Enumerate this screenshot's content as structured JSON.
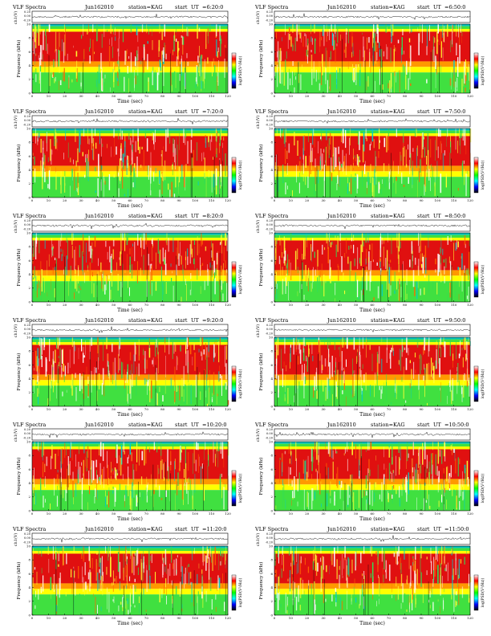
{
  "header_left": "VLF Spectra",
  "station": "station=KAG",
  "chart_data": [
    {
      "type": "heatmap",
      "title": "VLF Spectra",
      "date": "Jun162010",
      "station": "station=KAG",
      "start_label": "start",
      "ut_label": "UT",
      "start_time": "=6:20:0",
      "xlabel": "Time (sec)",
      "ylabel": "Frequency (kHz)",
      "top_ylabel": "ch1(V)",
      "top_yticks": [
        "0.20",
        "0.00",
        "-0.20"
      ],
      "colorbar_label": "log(PSD(V²/Hz))",
      "xlim": [
        0,
        120
      ],
      "ylim": [
        0,
        10
      ],
      "xticks": [
        0,
        10,
        20,
        30,
        40,
        50,
        60,
        70,
        80,
        90,
        100,
        110,
        120
      ],
      "yticks": [
        0,
        2,
        4,
        6,
        8,
        10
      ]
    },
    {
      "type": "heatmap",
      "title": "VLF Spectra",
      "date": "Jun162010",
      "station": "station=KAG",
      "start_label": "start",
      "ut_label": "UT",
      "start_time": "=6:50:0",
      "xlabel": "Time (sec)",
      "ylabel": "Frequency (kHz)",
      "top_ylabel": "ch1(V)",
      "top_yticks": [
        "0.20",
        "0.00",
        "-0.20"
      ],
      "colorbar_label": "log(PSD(V²/Hz))",
      "xlim": [
        0,
        120
      ],
      "ylim": [
        0,
        10
      ],
      "xticks": [
        0,
        10,
        20,
        30,
        40,
        50,
        60,
        70,
        80,
        90,
        100,
        110,
        120
      ],
      "yticks": [
        0,
        2,
        4,
        6,
        8,
        10
      ]
    },
    {
      "type": "heatmap",
      "title": "VLF Spectra",
      "date": "Jun162010",
      "station": "station=KAG",
      "start_label": "start",
      "ut_label": "UT",
      "start_time": "=7:20:0",
      "xlabel": "Time (sec)",
      "ylabel": "Frequency (kHz)",
      "top_ylabel": "ch1(V)",
      "top_yticks": [
        "0.20",
        "0.00",
        "-0.20"
      ],
      "colorbar_label": "log(PSD(V²/Hz))",
      "xlim": [
        0,
        120
      ],
      "ylim": [
        0,
        10
      ],
      "xticks": [
        0,
        10,
        20,
        30,
        40,
        50,
        60,
        70,
        80,
        90,
        100,
        110,
        120
      ],
      "yticks": [
        0,
        2,
        4,
        6,
        8,
        10
      ]
    },
    {
      "type": "heatmap",
      "title": "VLF Spectra",
      "date": "Jun162010",
      "station": "station=KAG",
      "start_label": "start",
      "ut_label": "UT",
      "start_time": "=7:50:0",
      "xlabel": "Time (sec)",
      "ylabel": "Frequency (kHz)",
      "top_ylabel": "ch1(V)",
      "top_yticks": [
        "0.20",
        "0.00",
        "-0.20"
      ],
      "colorbar_label": "log(PSD(V²/Hz))",
      "xlim": [
        0,
        120
      ],
      "ylim": [
        0,
        10
      ],
      "xticks": [
        0,
        10,
        20,
        30,
        40,
        50,
        60,
        70,
        80,
        90,
        100,
        110,
        120
      ],
      "yticks": [
        0,
        2,
        4,
        6,
        8,
        10
      ]
    },
    {
      "type": "heatmap",
      "title": "VLF Spectra",
      "date": "Jun162010",
      "station": "station=KAG",
      "start_label": "start",
      "ut_label": "UT",
      "start_time": "=8:20:0",
      "xlabel": "Time (sec)",
      "ylabel": "Frequency (kHz)",
      "top_ylabel": "ch1(V)",
      "top_yticks": [
        "0.20",
        "0.00",
        "-0.20"
      ],
      "colorbar_label": "log(PSD(V²/Hz))",
      "xlim": [
        0,
        120
      ],
      "ylim": [
        0,
        10
      ],
      "xticks": [
        0,
        10,
        20,
        30,
        40,
        50,
        60,
        70,
        80,
        90,
        100,
        110,
        120
      ],
      "yticks": [
        0,
        2,
        4,
        6,
        8,
        10
      ]
    },
    {
      "type": "heatmap",
      "title": "VLF Spectra",
      "date": "Jun162010",
      "station": "station=KAG",
      "start_label": "start",
      "ut_label": "UT",
      "start_time": "=8:50:0",
      "xlabel": "Time (sec)",
      "ylabel": "Frequency (kHz)",
      "top_ylabel": "ch1(V)",
      "top_yticks": [
        "0.20",
        "0.00",
        "-0.20"
      ],
      "colorbar_label": "log(PSD(V²/Hz))",
      "xlim": [
        0,
        120
      ],
      "ylim": [
        0,
        10
      ],
      "xticks": [
        0,
        10,
        20,
        30,
        40,
        50,
        60,
        70,
        80,
        90,
        100,
        110,
        120
      ],
      "yticks": [
        0,
        2,
        4,
        6,
        8,
        10
      ]
    },
    {
      "type": "heatmap",
      "title": "VLF Spectra",
      "date": "Jun162010",
      "station": "station=KAG",
      "start_label": "start",
      "ut_label": "UT",
      "start_time": "=9:20:0",
      "xlabel": "Time (sec)",
      "ylabel": "Frequency (kHz)",
      "top_ylabel": "ch1(V)",
      "top_yticks": [
        "0.20",
        "0.00",
        "-0.20"
      ],
      "colorbar_label": "log(PSD(V²/Hz))",
      "xlim": [
        0,
        120
      ],
      "ylim": [
        0,
        10
      ],
      "xticks": [
        0,
        10,
        20,
        30,
        40,
        50,
        60,
        70,
        80,
        90,
        100,
        110,
        120
      ],
      "yticks": [
        0,
        2,
        4,
        6,
        8,
        10
      ]
    },
    {
      "type": "heatmap",
      "title": "VLF Spectra",
      "date": "Jun162010",
      "station": "station=KAG",
      "start_label": "start",
      "ut_label": "UT",
      "start_time": "=9:50:0",
      "xlabel": "Time (sec)",
      "ylabel": "Frequency (kHz)",
      "top_ylabel": "ch1(V)",
      "top_yticks": [
        "0.20",
        "0.00",
        "-0.20"
      ],
      "colorbar_label": "log(PSD(V²/Hz))",
      "xlim": [
        0,
        120
      ],
      "ylim": [
        0,
        10
      ],
      "xticks": [
        0,
        10,
        20,
        30,
        40,
        50,
        60,
        70,
        80,
        90,
        100,
        110,
        120
      ],
      "yticks": [
        0,
        2,
        4,
        6,
        8,
        10
      ]
    },
    {
      "type": "heatmap",
      "title": "VLF Spectra",
      "date": "Jun162010",
      "station": "station=KAG",
      "start_label": "start",
      "ut_label": "UT",
      "start_time": "=10:20:0",
      "xlabel": "Time (sec)",
      "ylabel": "Frequency (kHz)",
      "top_ylabel": "ch1(V)",
      "top_yticks": [
        "0.20",
        "0.00",
        "-0.20"
      ],
      "colorbar_label": "log(PSD(V²/Hz))",
      "xlim": [
        0,
        120
      ],
      "ylim": [
        0,
        10
      ],
      "xticks": [
        0,
        10,
        20,
        30,
        40,
        50,
        60,
        70,
        80,
        90,
        100,
        110,
        120
      ],
      "yticks": [
        0,
        2,
        4,
        6,
        8,
        10
      ]
    },
    {
      "type": "heatmap",
      "title": "VLF Spectra",
      "date": "Jun162010",
      "station": "station=KAG",
      "start_label": "start",
      "ut_label": "UT",
      "start_time": "=10:50:0",
      "xlabel": "Time (sec)",
      "ylabel": "Frequency (kHz)",
      "top_ylabel": "ch1(V)",
      "top_yticks": [
        "0.20",
        "0.00",
        "-0.20"
      ],
      "colorbar_label": "log(PSD(V²/Hz))",
      "xlim": [
        0,
        120
      ],
      "ylim": [
        0,
        10
      ],
      "xticks": [
        0,
        10,
        20,
        30,
        40,
        50,
        60,
        70,
        80,
        90,
        100,
        110,
        120
      ],
      "yticks": [
        0,
        2,
        4,
        6,
        8,
        10
      ]
    },
    {
      "type": "heatmap",
      "title": "VLF Spectra",
      "date": "Jun162010",
      "station": "station=KAG",
      "start_label": "start",
      "ut_label": "UT",
      "start_time": "=11:20:0",
      "xlabel": "Time (sec)",
      "ylabel": "Frequency (kHz)",
      "top_ylabel": "ch1(V)",
      "top_yticks": [
        "0.20",
        "0.00",
        "-0.20"
      ],
      "colorbar_label": "log(PSD(V²/Hz))",
      "xlim": [
        0,
        120
      ],
      "ylim": [
        0,
        10
      ],
      "xticks": [
        0,
        10,
        20,
        30,
        40,
        50,
        60,
        70,
        80,
        90,
        100,
        110,
        120
      ],
      "yticks": [
        0,
        2,
        4,
        6,
        8,
        10
      ]
    },
    {
      "type": "heatmap",
      "title": "VLF Spectra",
      "date": "Jun162010",
      "station": "station=KAG",
      "start_label": "start",
      "ut_label": "UT",
      "start_time": "=11:50:0",
      "xlabel": "Time (sec)",
      "ylabel": "Frequency (kHz)",
      "top_ylabel": "ch1(V)",
      "top_yticks": [
        "0.20",
        "0.00",
        "-0.20"
      ],
      "colorbar_label": "log(PSD(V²/Hz))",
      "xlim": [
        0,
        120
      ],
      "ylim": [
        0,
        10
      ],
      "xticks": [
        0,
        10,
        20,
        30,
        40,
        50,
        60,
        70,
        80,
        90,
        100,
        110,
        120
      ],
      "yticks": [
        0,
        2,
        4,
        6,
        8,
        10
      ]
    }
  ],
  "colors": {
    "band_top": "#ffff00",
    "band_high": "#e01010",
    "band_mid": "#ff9900",
    "band_low": "#40e040",
    "band_cyan": "#00c0c0",
    "cbar": [
      "#ffffff",
      "#ff0000",
      "#ffff00",
      "#00ff00",
      "#00ffff",
      "#0000ff",
      "#000000"
    ]
  }
}
